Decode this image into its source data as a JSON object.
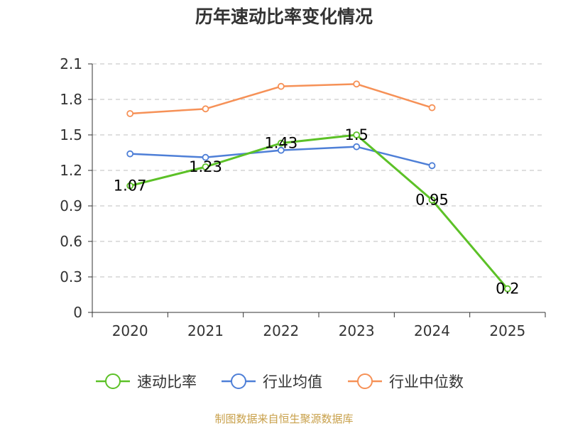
{
  "chart_data": {
    "type": "line",
    "title": "历年速动比率变化情况",
    "categories": [
      "2020",
      "2021",
      "2022",
      "2023",
      "2024",
      "2025"
    ],
    "ylim": [
      0,
      2.1
    ],
    "yticks": [
      "0",
      "0.3",
      "0.6",
      "0.9",
      "1.2",
      "1.5",
      "1.8",
      "2.1"
    ],
    "grid": true,
    "legend_position": "bottom",
    "series": [
      {
        "name": "速动比率",
        "color": "#5cc127",
        "values": [
          1.07,
          1.23,
          1.43,
          1.5,
          0.95,
          0.2
        ],
        "labels": [
          "1.07",
          "1.23",
          "1.43",
          "1.5",
          "0.95",
          "0.2"
        ]
      },
      {
        "name": "行业均值",
        "color": "#4e7fd7",
        "values": [
          1.34,
          1.31,
          1.37,
          1.4,
          1.24,
          null
        ]
      },
      {
        "name": "行业中位数",
        "color": "#f69157",
        "values": [
          1.68,
          1.72,
          1.91,
          1.93,
          1.73,
          null
        ]
      }
    ]
  },
  "source_text": "制图数据来自恒生聚源数据库"
}
